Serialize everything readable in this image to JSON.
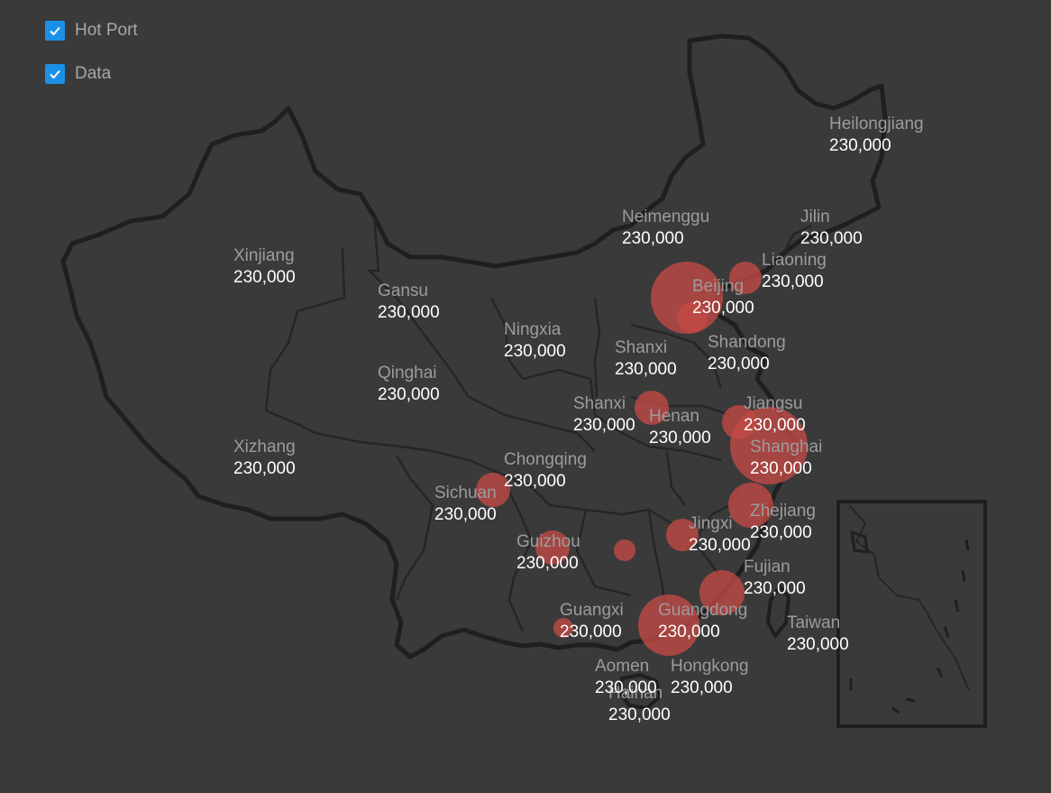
{
  "legend": {
    "items": [
      {
        "label": "Hot Port",
        "checked": true
      },
      {
        "label": "Data",
        "checked": true
      }
    ]
  },
  "colors": {
    "background": "#3a3a3a",
    "map_stroke": "#1f1f1f",
    "checkbox": "#1b90e8",
    "bubble": "#c44a45"
  },
  "provinces": [
    {
      "name": "Heilongjiang",
      "value": "230,000"
    },
    {
      "name": "Jilin",
      "value": "230,000"
    },
    {
      "name": "Liaoning",
      "value": "230,000"
    },
    {
      "name": "Neimenggu",
      "value": "230,000"
    },
    {
      "name": "Beijing",
      "value": "230,000"
    },
    {
      "name": "Xinjiang",
      "value": "230,000"
    },
    {
      "name": "Gansu",
      "value": "230,000"
    },
    {
      "name": "Ningxia",
      "value": "230,000"
    },
    {
      "name": "Shanxi",
      "value": "230,000"
    },
    {
      "name": "Shandong",
      "value": "230,000"
    },
    {
      "name": "Qinghai",
      "value": "230,000"
    },
    {
      "name": "Shanxi",
      "value": "230,000"
    },
    {
      "name": "Henan",
      "value": "230,000"
    },
    {
      "name": "Jiangsu",
      "value": "230,000"
    },
    {
      "name": "Shanghai",
      "value": "230,000"
    },
    {
      "name": "Xizhang",
      "value": "230,000"
    },
    {
      "name": "Chongqing",
      "value": "230,000"
    },
    {
      "name": "Sichuan",
      "value": "230,000"
    },
    {
      "name": "Zhejiang",
      "value": "230,000"
    },
    {
      "name": "Jingxi",
      "value": "230,000"
    },
    {
      "name": "Guizhou",
      "value": "230,000"
    },
    {
      "name": "Fujian",
      "value": "230,000"
    },
    {
      "name": "Guangxi",
      "value": "230,000"
    },
    {
      "name": "Guangdong",
      "value": "230,000"
    },
    {
      "name": "Taiwan",
      "value": "230,000"
    },
    {
      "name": "Aomen",
      "value": "230,000"
    },
    {
      "name": "Hongkong",
      "value": "230,000"
    },
    {
      "name": "Hainan",
      "value": "230,000"
    }
  ]
}
